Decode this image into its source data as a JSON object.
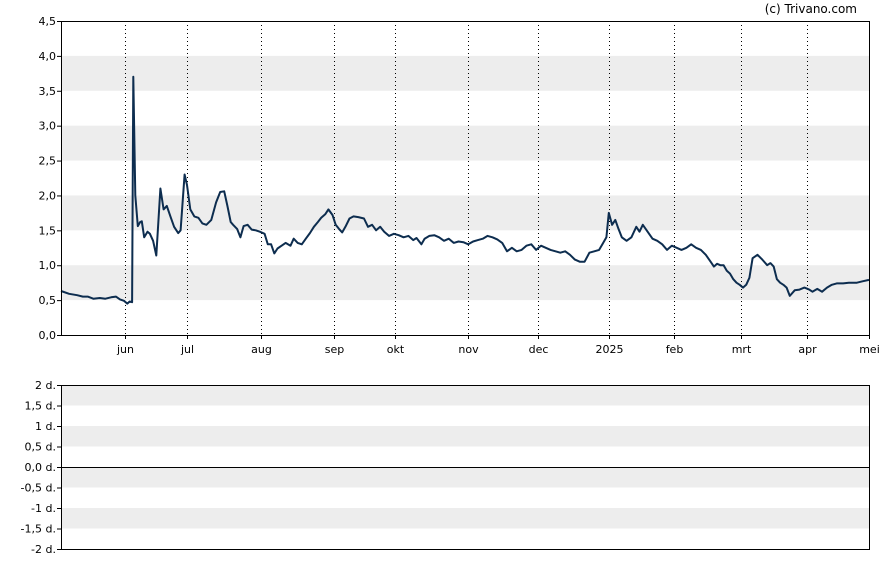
{
  "credit": "(c) Trivano.com",
  "chart_data": [
    {
      "type": "line",
      "title": "",
      "xlabel": "",
      "ylabel": "",
      "ylim": [
        0,
        4.5
      ],
      "y_ticks": [
        "0,0",
        "0,5",
        "1,0",
        "1,5",
        "2,0",
        "2,5",
        "3,0",
        "3,5",
        "4,0",
        "4,5"
      ],
      "x_ticks": [
        {
          "label": "jun",
          "pos": 0.0797
        },
        {
          "label": "jul",
          "pos": 0.1557
        },
        {
          "label": "aug",
          "pos": 0.247
        },
        {
          "label": "sep",
          "pos": 0.3384
        },
        {
          "label": "okt",
          "pos": 0.413
        },
        {
          "label": "nov",
          "pos": 0.504
        },
        {
          "label": "dec",
          "pos": 0.5905
        },
        {
          "label": "2025",
          "pos": 0.6786
        },
        {
          "label": "feb",
          "pos": 0.759
        },
        {
          "label": "mrt",
          "pos": 0.842
        },
        {
          "label": "apr",
          "pos": 0.923
        },
        {
          "label": "mei",
          "pos": 1.0
        }
      ],
      "grid": true,
      "band_color": "#ededed",
      "line_color": "#0d2d4f",
      "series": [
        {
          "values": [
            [
              0.0,
              0.63
            ],
            [
              0.01,
              0.59
            ],
            [
              0.02,
              0.57
            ],
            [
              0.027,
              0.55
            ],
            [
              0.033,
              0.55
            ],
            [
              0.04,
              0.52
            ],
            [
              0.048,
              0.53
            ],
            [
              0.055,
              0.52
            ],
            [
              0.062,
              0.54
            ],
            [
              0.068,
              0.55
            ],
            [
              0.073,
              0.51
            ],
            [
              0.078,
              0.49
            ],
            [
              0.082,
              0.45
            ],
            [
              0.085,
              0.48
            ],
            [
              0.088,
              0.47
            ],
            [
              0.0895,
              3.7
            ],
            [
              0.092,
              2.0
            ],
            [
              0.095,
              1.56
            ],
            [
              0.098,
              1.62
            ],
            [
              0.1,
              1.63
            ],
            [
              0.103,
              1.4
            ],
            [
              0.107,
              1.48
            ],
            [
              0.11,
              1.45
            ],
            [
              0.114,
              1.35
            ],
            [
              0.118,
              1.14
            ],
            [
              0.123,
              2.1
            ],
            [
              0.127,
              1.8
            ],
            [
              0.131,
              1.85
            ],
            [
              0.136,
              1.68
            ],
            [
              0.14,
              1.55
            ],
            [
              0.145,
              1.46
            ],
            [
              0.148,
              1.5
            ],
            [
              0.153,
              2.3
            ],
            [
              0.156,
              2.15
            ],
            [
              0.16,
              1.8
            ],
            [
              0.165,
              1.7
            ],
            [
              0.17,
              1.68
            ],
            [
              0.175,
              1.6
            ],
            [
              0.18,
              1.58
            ],
            [
              0.186,
              1.65
            ],
            [
              0.192,
              1.9
            ],
            [
              0.197,
              2.05
            ],
            [
              0.202,
              2.06
            ],
            [
              0.206,
              1.85
            ],
            [
              0.21,
              1.62
            ],
            [
              0.213,
              1.58
            ],
            [
              0.218,
              1.52
            ],
            [
              0.222,
              1.4
            ],
            [
              0.226,
              1.56
            ],
            [
              0.231,
              1.58
            ],
            [
              0.236,
              1.51
            ],
            [
              0.241,
              1.5
            ],
            [
              0.246,
              1.48
            ],
            [
              0.252,
              1.45
            ],
            [
              0.256,
              1.3
            ],
            [
              0.26,
              1.3
            ],
            [
              0.264,
              1.17
            ],
            [
              0.268,
              1.24
            ],
            [
              0.273,
              1.28
            ],
            [
              0.278,
              1.32
            ],
            [
              0.284,
              1.28
            ],
            [
              0.288,
              1.38
            ],
            [
              0.293,
              1.32
            ],
            [
              0.298,
              1.3
            ],
            [
              0.303,
              1.38
            ],
            [
              0.308,
              1.46
            ],
            [
              0.313,
              1.55
            ],
            [
              0.318,
              1.62
            ],
            [
              0.322,
              1.68
            ],
            [
              0.327,
              1.73
            ],
            [
              0.331,
              1.8
            ],
            [
              0.336,
              1.72
            ],
            [
              0.34,
              1.58
            ],
            [
              0.344,
              1.52
            ],
            [
              0.348,
              1.47
            ],
            [
              0.352,
              1.55
            ],
            [
              0.357,
              1.67
            ],
            [
              0.362,
              1.7
            ],
            [
              0.368,
              1.69
            ],
            [
              0.375,
              1.67
            ],
            [
              0.38,
              1.55
            ],
            [
              0.385,
              1.58
            ],
            [
              0.39,
              1.5
            ],
            [
              0.395,
              1.55
            ],
            [
              0.4,
              1.48
            ],
            [
              0.406,
              1.42
            ],
            [
              0.412,
              1.45
            ],
            [
              0.418,
              1.43
            ],
            [
              0.424,
              1.4
            ],
            [
              0.43,
              1.42
            ],
            [
              0.436,
              1.36
            ],
            [
              0.44,
              1.39
            ],
            [
              0.446,
              1.3
            ],
            [
              0.45,
              1.38
            ],
            [
              0.456,
              1.42
            ],
            [
              0.462,
              1.43
            ],
            [
              0.468,
              1.4
            ],
            [
              0.474,
              1.35
            ],
            [
              0.48,
              1.38
            ],
            [
              0.486,
              1.32
            ],
            [
              0.492,
              1.34
            ],
            [
              0.498,
              1.33
            ],
            [
              0.504,
              1.3
            ],
            [
              0.51,
              1.34
            ],
            [
              0.516,
              1.36
            ],
            [
              0.522,
              1.38
            ],
            [
              0.528,
              1.42
            ],
            [
              0.534,
              1.4
            ],
            [
              0.54,
              1.37
            ],
            [
              0.546,
              1.32
            ],
            [
              0.552,
              1.2
            ],
            [
              0.558,
              1.25
            ],
            [
              0.564,
              1.2
            ],
            [
              0.57,
              1.22
            ],
            [
              0.576,
              1.28
            ],
            [
              0.582,
              1.3
            ],
            [
              0.588,
              1.22
            ],
            [
              0.594,
              1.28
            ],
            [
              0.6,
              1.25
            ],
            [
              0.606,
              1.22
            ],
            [
              0.612,
              1.2
            ],
            [
              0.618,
              1.18
            ],
            [
              0.624,
              1.2
            ],
            [
              0.63,
              1.15
            ],
            [
              0.636,
              1.08
            ],
            [
              0.642,
              1.05
            ],
            [
              0.648,
              1.05
            ],
            [
              0.654,
              1.18
            ],
            [
              0.66,
              1.2
            ],
            [
              0.666,
              1.22
            ],
            [
              0.67,
              1.3
            ],
            [
              0.675,
              1.4
            ],
            [
              0.678,
              1.75
            ],
            [
              0.682,
              1.58
            ],
            [
              0.686,
              1.65
            ],
            [
              0.69,
              1.52
            ],
            [
              0.694,
              1.4
            ],
            [
              0.7,
              1.35
            ],
            [
              0.706,
              1.4
            ],
            [
              0.712,
              1.55
            ],
            [
              0.716,
              1.48
            ],
            [
              0.72,
              1.58
            ],
            [
              0.726,
              1.48
            ],
            [
              0.732,
              1.38
            ],
            [
              0.738,
              1.35
            ],
            [
              0.744,
              1.3
            ],
            [
              0.75,
              1.22
            ],
            [
              0.756,
              1.28
            ],
            [
              0.762,
              1.25
            ],
            [
              0.768,
              1.22
            ],
            [
              0.774,
              1.25
            ],
            [
              0.78,
              1.3
            ],
            [
              0.786,
              1.25
            ],
            [
              0.792,
              1.22
            ],
            [
              0.798,
              1.15
            ],
            [
              0.804,
              1.05
            ],
            [
              0.808,
              0.98
            ],
            [
              0.812,
              1.02
            ],
            [
              0.816,
              1.0
            ],
            [
              0.82,
              1.0
            ],
            [
              0.824,
              0.92
            ],
            [
              0.828,
              0.88
            ],
            [
              0.832,
              0.8
            ],
            [
              0.836,
              0.75
            ],
            [
              0.84,
              0.72
            ],
            [
              0.844,
              0.68
            ],
            [
              0.848,
              0.72
            ],
            [
              0.852,
              0.82
            ],
            [
              0.856,
              1.1
            ],
            [
              0.862,
              1.15
            ],
            [
              0.868,
              1.08
            ],
            [
              0.874,
              1.0
            ],
            [
              0.878,
              1.03
            ],
            [
              0.882,
              0.98
            ],
            [
              0.886,
              0.8
            ],
            [
              0.89,
              0.75
            ],
            [
              0.894,
              0.72
            ],
            [
              0.898,
              0.68
            ],
            [
              0.902,
              0.56
            ],
            [
              0.908,
              0.64
            ],
            [
              0.914,
              0.65
            ],
            [
              0.92,
              0.68
            ],
            [
              0.926,
              0.65
            ],
            [
              0.93,
              0.62
            ],
            [
              0.936,
              0.66
            ],
            [
              0.942,
              0.62
            ],
            [
              0.948,
              0.68
            ],
            [
              0.954,
              0.72
            ],
            [
              0.96,
              0.74
            ],
            [
              0.968,
              0.74
            ],
            [
              0.975,
              0.75
            ],
            [
              0.985,
              0.75
            ],
            [
              0.992,
              0.77
            ],
            [
              1.0,
              0.79
            ]
          ]
        }
      ]
    },
    {
      "type": "line",
      "title": "",
      "xlabel": "",
      "ylabel": "",
      "ylim": [
        -2,
        2
      ],
      "y_ticks": [
        "-2 d.",
        "-1,5 d.",
        "-1 d.",
        "-0,5 d.",
        "0,0 d.",
        "0,5 d.",
        "1 d.",
        "1,5 d.",
        "2 d."
      ],
      "grid": true,
      "band_color": "#ededed",
      "series": []
    }
  ]
}
